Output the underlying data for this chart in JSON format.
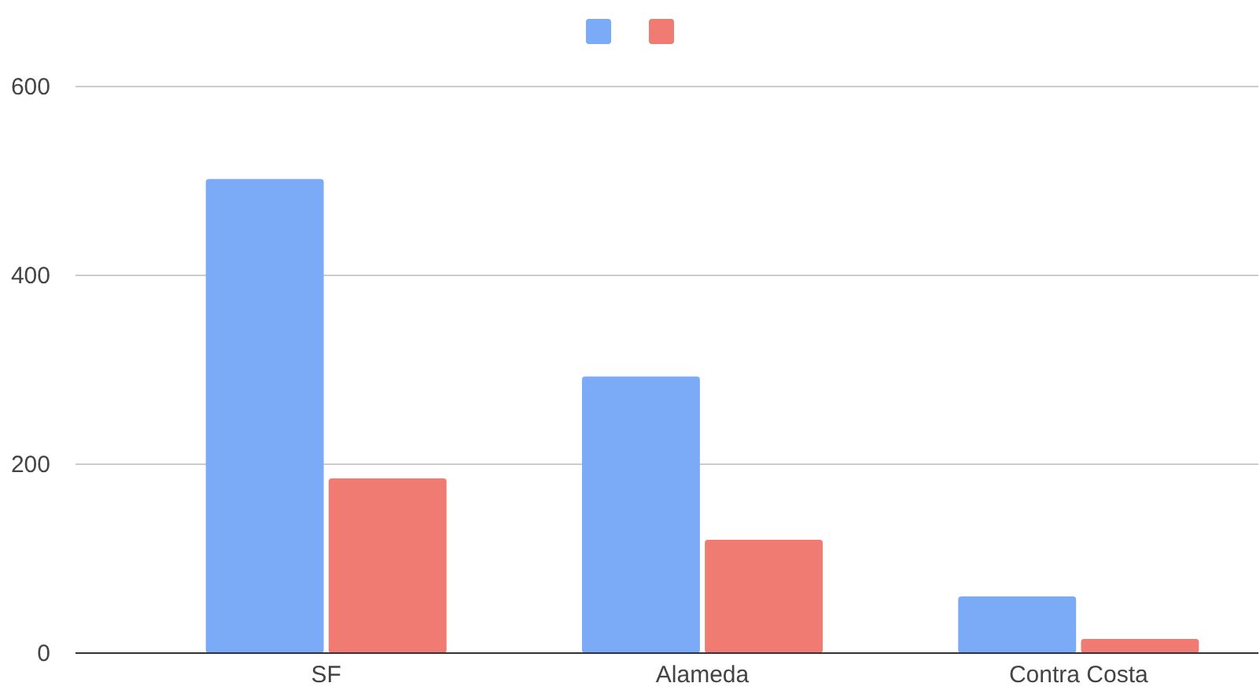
{
  "chart_data": {
    "type": "bar",
    "categories": [
      "SF",
      "Alameda",
      "Contra Costa"
    ],
    "series": [
      {
        "color": "#7baaf7",
        "values": [
          502,
          293,
          60
        ]
      },
      {
        "color": "#f07b72",
        "values": [
          185,
          120,
          15
        ]
      }
    ],
    "ylim": [
      0,
      600
    ],
    "yticks": [
      0,
      200,
      400,
      600
    ],
    "grid": "y"
  }
}
